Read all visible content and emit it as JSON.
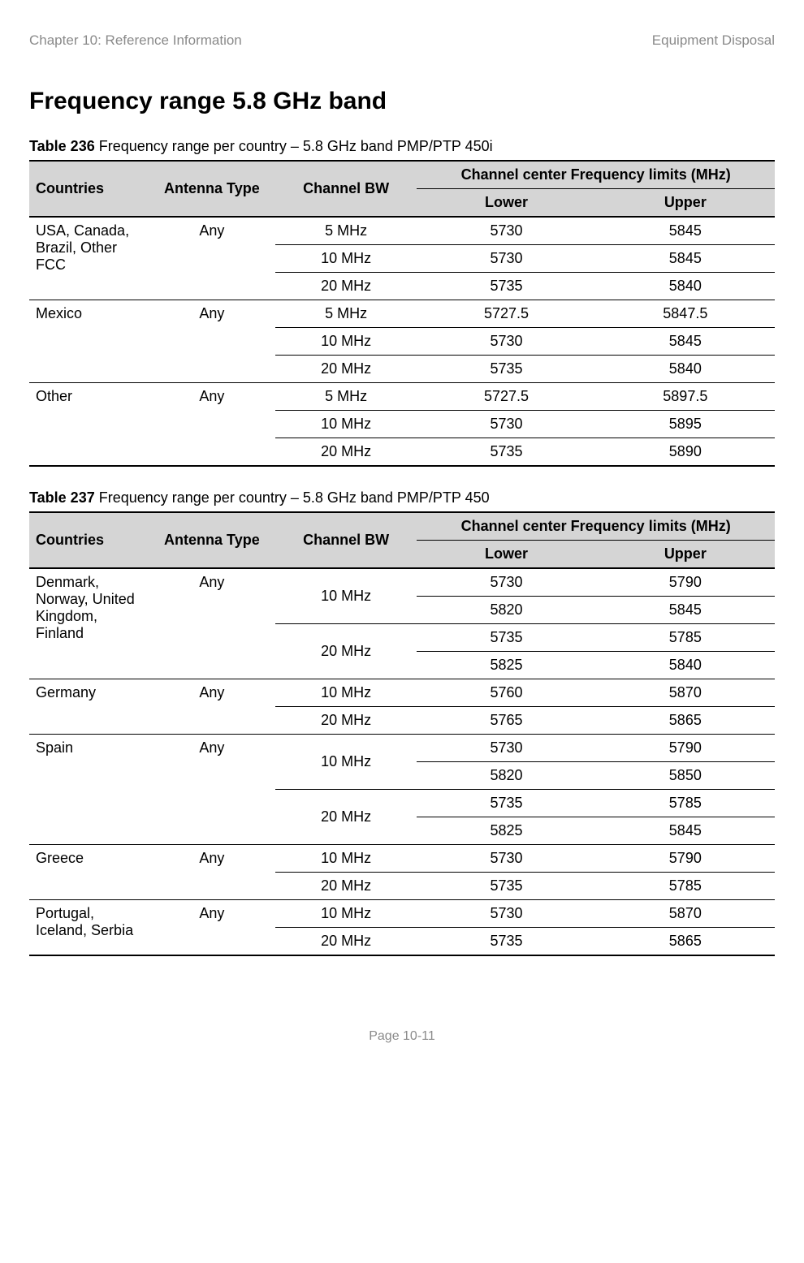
{
  "header": {
    "left": "Chapter 10:  Reference Information",
    "right": "Equipment Disposal"
  },
  "section_title": "Frequency range 5.8 GHz band",
  "columns": {
    "countries": "Countries",
    "antenna": "Antenna Type",
    "bw": "Channel BW",
    "limits_span": "Channel center Frequency limits (MHz)",
    "lower": "Lower",
    "upper": "Upper"
  },
  "table236": {
    "label": "Table 236",
    "caption": "Frequency range per country – 5.8 GHz band PMP/PTP 450i",
    "groups": [
      {
        "country": "USA, Canada, Brazil, Other FCC",
        "antenna": "Any",
        "rows": [
          {
            "bw": "5 MHz",
            "lower": "5730",
            "upper": "5845"
          },
          {
            "bw": "10 MHz",
            "lower": "5730",
            "upper": "5845"
          },
          {
            "bw": "20 MHz",
            "lower": "5735",
            "upper": "5840"
          }
        ]
      },
      {
        "country": "Mexico",
        "antenna": "Any",
        "rows": [
          {
            "bw": "5 MHz",
            "lower": "5727.5",
            "upper": "5847.5"
          },
          {
            "bw": "10 MHz",
            "lower": "5730",
            "upper": "5845"
          },
          {
            "bw": "20 MHz",
            "lower": "5735",
            "upper": "5840"
          }
        ]
      },
      {
        "country": "Other",
        "antenna": "Any",
        "rows": [
          {
            "bw": "5 MHz",
            "lower": "5727.5",
            "upper": "5897.5"
          },
          {
            "bw": "10 MHz",
            "lower": "5730",
            "upper": "5895"
          },
          {
            "bw": "20 MHz",
            "lower": "5735",
            "upper": "5890"
          }
        ]
      }
    ]
  },
  "table237": {
    "label": "Table 237",
    "caption": "Frequency range per country – 5.8 GHz band PMP/PTP 450",
    "groups": [
      {
        "country": "Denmark, Norway, United Kingdom, Finland",
        "antenna": "Any",
        "rows": [
          {
            "bw": "10 MHz",
            "bw_rowspan": 2,
            "lower": "5730",
            "upper": "5790"
          },
          {
            "lower": "5820",
            "upper": "5845"
          },
          {
            "bw": "20 MHz",
            "bw_rowspan": 2,
            "lower": "5735",
            "upper": "5785"
          },
          {
            "lower": "5825",
            "upper": "5840"
          }
        ]
      },
      {
        "country": "Germany",
        "antenna": "Any",
        "rows": [
          {
            "bw": "10 MHz",
            "lower": "5760",
            "upper": "5870"
          },
          {
            "bw": "20 MHz",
            "lower": "5765",
            "upper": "5865"
          }
        ]
      },
      {
        "country": "Spain",
        "antenna": "Any",
        "rows": [
          {
            "bw": "10 MHz",
            "bw_rowspan": 2,
            "lower": "5730",
            "upper": "5790"
          },
          {
            "lower": "5820",
            "upper": "5850"
          },
          {
            "bw": "20 MHz",
            "bw_rowspan": 2,
            "lower": "5735",
            "upper": "5785"
          },
          {
            "lower": "5825",
            "upper": "5845"
          }
        ]
      },
      {
        "country": "Greece",
        "antenna": "Any",
        "rows": [
          {
            "bw": "10 MHz",
            "lower": "5730",
            "upper": "5790"
          },
          {
            "bw": "20 MHz",
            "lower": "5735",
            "upper": "5785"
          }
        ]
      },
      {
        "country": "Portugal, Iceland, Serbia",
        "antenna": "Any",
        "rows": [
          {
            "bw": "10 MHz",
            "lower": "5730",
            "upper": "5870"
          },
          {
            "bw": "20 MHz",
            "lower": "5735",
            "upper": "5865"
          }
        ]
      }
    ]
  },
  "footer": "Page 10-11"
}
